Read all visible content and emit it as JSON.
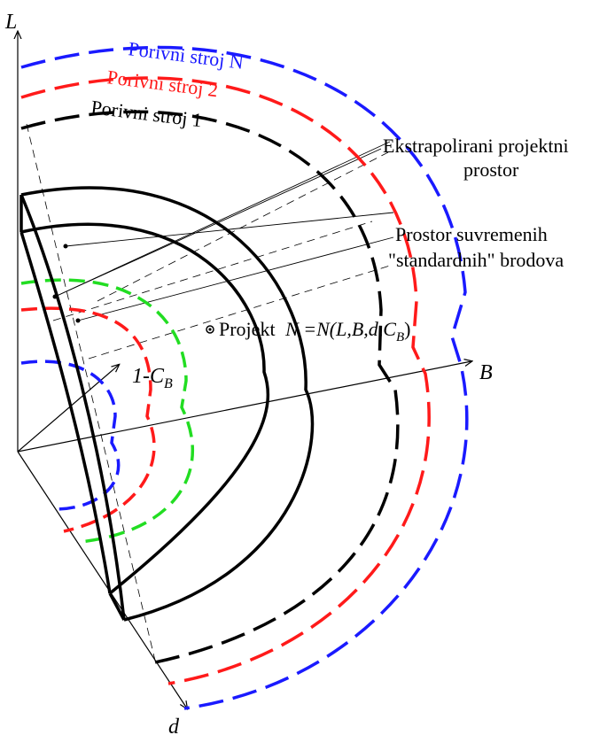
{
  "axes": {
    "l_label": "L",
    "b_label": "B",
    "d_label": "d",
    "cb_prefix": "1-C",
    "cb_sub": "B"
  },
  "curves": {
    "stroj_n": "Porivni stroj N",
    "stroj_2": "Porivni stroj 2",
    "stroj_1": "Porivni stroj 1"
  },
  "annotations": {
    "ekstra_line1": "Ekstrapolirani projektni",
    "ekstra_line2": "prostor",
    "prostor_line1": "Prostor suvremenih",
    "prostor_line2": "\"standardnih\" brodova",
    "projekt_word": "Projekt",
    "projekt_formula_main": "N =N(L,B,d,C",
    "projekt_formula_sub": "B",
    "projekt_formula_close": ")"
  },
  "colors": {
    "stroj_n": "#1a1aff",
    "stroj_2": "#ff1a1a",
    "stroj_1": "#000000",
    "inner_green": "#22dd22",
    "line": "#000000"
  }
}
